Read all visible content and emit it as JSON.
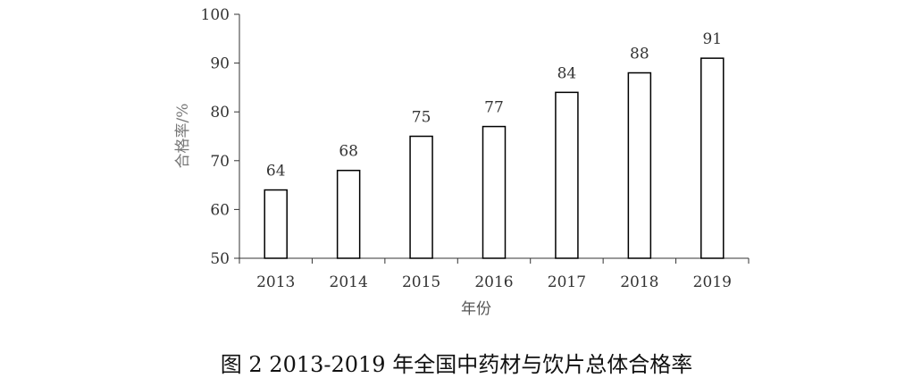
{
  "chart_data": {
    "type": "bar",
    "categories": [
      "2013",
      "2014",
      "2015",
      "2016",
      "2017",
      "2018",
      "2019"
    ],
    "values": [
      64,
      68,
      75,
      77,
      84,
      88,
      91
    ],
    "data_labels": [
      "64",
      "68",
      "75",
      "77",
      "84",
      "88",
      "91"
    ],
    "yticks": [
      "50",
      "60",
      "70",
      "80",
      "90",
      "100"
    ],
    "ylim": [
      50,
      100
    ],
    "xlabel": "年份",
    "ylabel": "合格率/%",
    "grid": false,
    "bar_fill": "#ffffff",
    "bar_stroke": "#000000",
    "axis_color": "#333333",
    "label_color": "#555555"
  },
  "caption": "图 2  2013-2019 年全国中药材与饮片总体合格率"
}
